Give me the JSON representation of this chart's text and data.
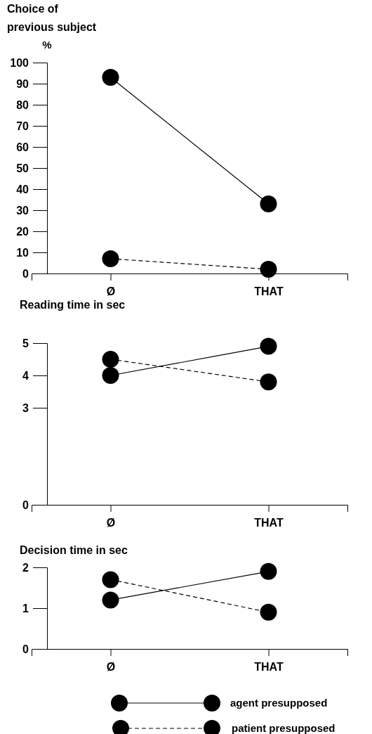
{
  "chart_data": [
    {
      "type": "line",
      "title": "Choice of previous subject",
      "ylabel": "%",
      "categories": [
        "Ø",
        "THAT"
      ],
      "ylim": [
        0,
        100
      ],
      "yticks": [
        0,
        10,
        20,
        30,
        40,
        50,
        60,
        70,
        80,
        90,
        100
      ],
      "marker": "circle",
      "grid": false,
      "series": [
        {
          "color": "#000000",
          "line_style": "solid",
          "values": [
            93,
            33
          ]
        },
        {
          "color": "#000000",
          "line_style": "dashed",
          "values": [
            7,
            2
          ]
        }
      ]
    },
    {
      "type": "line",
      "title": "Reading time in sec",
      "categories": [
        "Ø",
        "THAT"
      ],
      "ylim": [
        0,
        5
      ],
      "yticks": [
        0,
        3,
        4,
        5
      ],
      "marker": "circle",
      "grid": false,
      "series": [
        {
          "color": "#000000",
          "line_style": "solid",
          "values": [
            4.0,
            4.9
          ]
        },
        {
          "color": "#000000",
          "line_style": "dashed",
          "values": [
            4.5,
            3.8
          ]
        }
      ]
    },
    {
      "type": "line",
      "title": "Decision time in sec",
      "categories": [
        "Ø",
        "THAT"
      ],
      "ylim": [
        0,
        2
      ],
      "yticks": [
        0,
        1,
        2
      ],
      "marker": "circle",
      "grid": false,
      "legend": "bottom",
      "series": [
        {
          "name": "agent presupposed",
          "color": "#000000",
          "line_style": "solid",
          "values": [
            1.2,
            1.9
          ]
        },
        {
          "name": "patient presupposed",
          "color": "#000000",
          "line_style": "dashed",
          "values": [
            1.7,
            0.9
          ]
        }
      ]
    }
  ]
}
